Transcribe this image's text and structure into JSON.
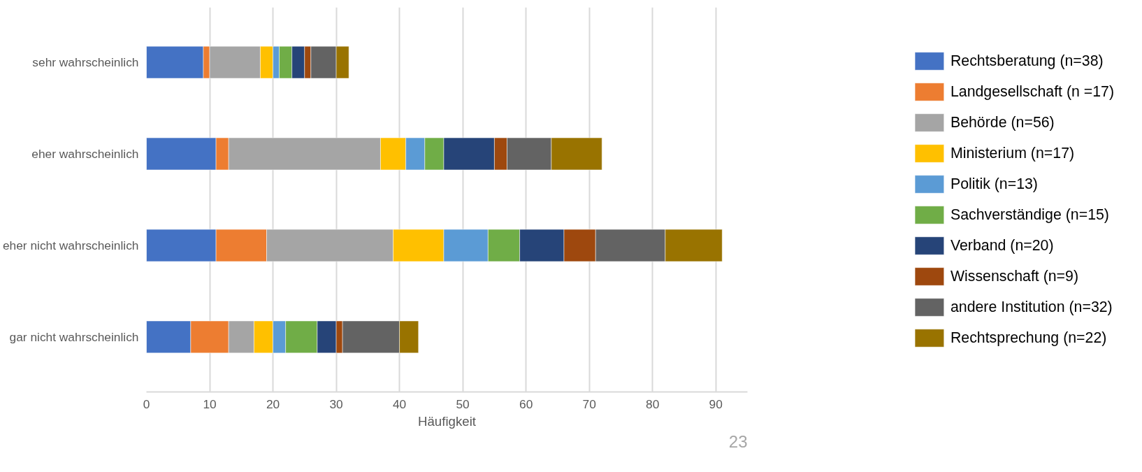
{
  "chart_data": {
    "type": "bar",
    "orientation": "horizontal",
    "stacked": true,
    "categories": [
      "sehr wahrscheinlich",
      "eher wahrscheinlich",
      "eher nicht wahrscheinlich",
      "gar nicht wahrscheinlich"
    ],
    "series": [
      {
        "name": "Rechtsberatung (n=38)",
        "color": "#4472c4",
        "values": [
          9,
          11,
          11,
          7
        ]
      },
      {
        "name": "Landgesellschaft (n =17)",
        "color": "#ed7d31",
        "values": [
          1,
          2,
          8,
          6
        ]
      },
      {
        "name": "Behörde (n=56)",
        "color": "#a5a5a5",
        "values": [
          8,
          24,
          20,
          4
        ]
      },
      {
        "name": "Ministerium (n=17)",
        "color": "#ffc000",
        "values": [
          2,
          4,
          8,
          3
        ]
      },
      {
        "name": "Politik (n=13)",
        "color": "#5b9bd5",
        "values": [
          1,
          3,
          7,
          2
        ]
      },
      {
        "name": "Sachverständige (n=15)",
        "color": "#70ad47",
        "values": [
          2,
          3,
          5,
          5
        ]
      },
      {
        "name": "Verband (n=20)",
        "color": "#264478",
        "values": [
          2,
          8,
          7,
          3
        ]
      },
      {
        "name": "Wissenschaft (n=9)",
        "color": "#9e480e",
        "values": [
          1,
          2,
          5,
          1
        ]
      },
      {
        "name": "andere Institution (n=32)",
        "color": "#636363",
        "values": [
          4,
          7,
          11,
          9
        ]
      },
      {
        "name": "Rechtsprechung (n=22)",
        "color": "#997300",
        "values": [
          2,
          8,
          9,
          3
        ]
      }
    ],
    "xlim": [
      0,
      95
    ],
    "xticks": [
      0,
      10,
      20,
      30,
      40,
      50,
      60,
      70,
      80,
      90
    ],
    "xlabel": "Häufigkeit",
    "grid": "x",
    "legend": "right",
    "annotations": [
      "23"
    ]
  }
}
